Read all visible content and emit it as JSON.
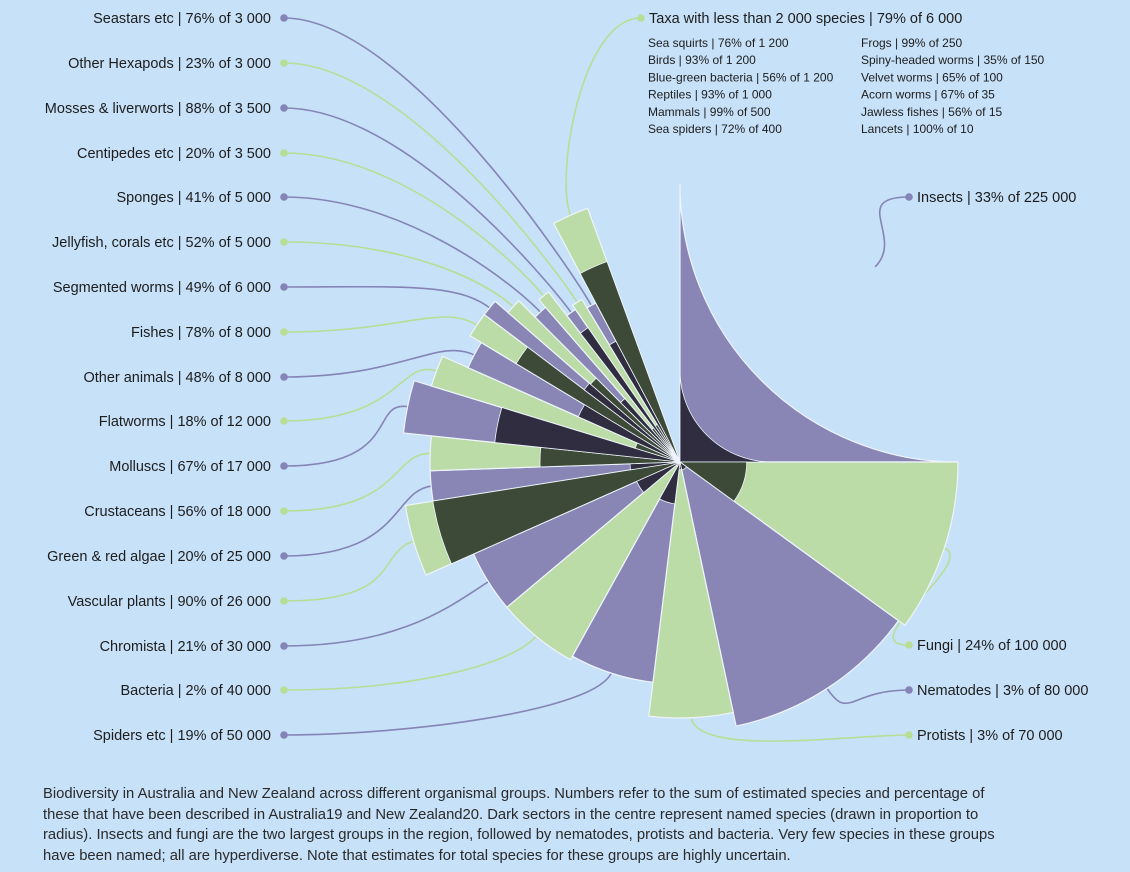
{
  "chart_data": {
    "type": "pie",
    "variant": "polar-area",
    "note_legend": "Taxa with less than 2 000 species | 79% of 6 000",
    "groups": [
      {
        "label": "Insects | 33% of 225 000",
        "species": 225000,
        "percent_named": 33,
        "tone": "purple"
      },
      {
        "label": "Fungi | 24% of 100 000",
        "species": 100000,
        "percent_named": 24,
        "tone": "green"
      },
      {
        "label": "Nematodes | 3% of 80 000",
        "species": 80000,
        "percent_named": 3,
        "tone": "purple"
      },
      {
        "label": "Protists | 3% of 70 000",
        "species": 70000,
        "percent_named": 3,
        "tone": "green"
      },
      {
        "label": "Spiders etc | 19% of 50 000",
        "species": 50000,
        "percent_named": 19,
        "tone": "purple"
      },
      {
        "label": "Bacteria | 2% of 40 000",
        "species": 40000,
        "percent_named": 2,
        "tone": "green"
      },
      {
        "label": "Chromista | 21%  of 30 000",
        "species": 30000,
        "percent_named": 21,
        "tone": "purple"
      },
      {
        "label": "Vascular plants | 90% of 26 000",
        "species": 26000,
        "percent_named": 90,
        "tone": "green"
      },
      {
        "label": "Green & red algae | 20% of 25 000",
        "species": 25000,
        "percent_named": 20,
        "tone": "purple"
      },
      {
        "label": "Crustaceans | 56% of 18 000",
        "species": 18000,
        "percent_named": 56,
        "tone": "green"
      },
      {
        "label": "Molluscs | 67% of 17 000",
        "species": 17000,
        "percent_named": 67,
        "tone": "purple"
      },
      {
        "label": "Flatworms | 18% of 12 000",
        "species": 12000,
        "percent_named": 18,
        "tone": "green"
      },
      {
        "label": "Other animals | 48% of 8 000",
        "species": 8000,
        "percent_named": 48,
        "tone": "purple"
      },
      {
        "label": "Fishes | 78% of 8 000",
        "species": 8000,
        "percent_named": 78,
        "tone": "green"
      },
      {
        "label": "Segmented worms | 49% of 6 000",
        "species": 6000,
        "percent_named": 49,
        "tone": "purple"
      },
      {
        "label": "Jellyfish, corals etc | 52% of 5 000",
        "species": 5000,
        "percent_named": 52,
        "tone": "green"
      },
      {
        "label": "Sponges | 41% of 5 000",
        "species": 5000,
        "percent_named": 41,
        "tone": "purple"
      },
      {
        "label": "Centipedes etc | 20% of 3 500",
        "species": 3500,
        "percent_named": 20,
        "tone": "green"
      },
      {
        "label": "Mosses & liverworts | 88% of 3 500",
        "species": 3500,
        "percent_named": 88,
        "tone": "purple"
      },
      {
        "label": "Other Hexapods | 23% of 3 000",
        "species": 3000,
        "percent_named": 23,
        "tone": "green"
      },
      {
        "label": "Seastars etc | 76% of 3 000",
        "species": 3000,
        "percent_named": 76,
        "tone": "purple"
      },
      {
        "label": "Taxa with less than 2 000 species | 79% of 6 000",
        "species": 6000,
        "percent_named": 79,
        "tone": "green"
      }
    ],
    "small_taxa": [
      "Sea squirts | 76% of 1 200",
      "Birds | 93% of 1 200",
      "Blue-green bacteria | 56% of 1 200",
      "Reptiles | 93% of 1 000",
      "Mammals | 99% of 500",
      "Sea spiders | 72% of 400",
      "Frogs | 99% of 250",
      "Spiny-headed worms | 35% of 150",
      "Velvet worms | 65% of 100",
      "Acorn worms | 67% of 35",
      "Jawless fishes | 56% of 15",
      "Lancets | 100% of 10"
    ],
    "colors": {
      "background": "#c6e1f8",
      "purple": "#8986b5",
      "green": "#bcdca7",
      "dark_purple": "#302d40",
      "dark_green": "#3d4a37",
      "line_purple": "#8584b6",
      "line_green": "#b8de95"
    }
  },
  "caption": "Biodiversity in Australia and New Zealand across different organismal groups. Numbers refer to the sum of estimated species and percentage of these that have been described in Australia19 and New Zealand20. Dark sectors in the centre represent named species (drawn in proportion to radius). Insects and fungi are the two largest groups in the region, followed by nematodes, protists and bacteria. Very few species in these groups have been named; all are hyperdiverse. Note that estimates for total species for these groups are highly uncertain."
}
